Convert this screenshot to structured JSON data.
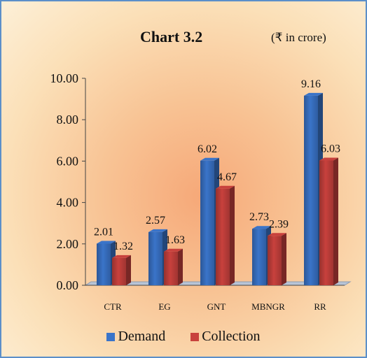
{
  "chart_data": {
    "type": "bar",
    "title": "Chart 3.2",
    "subtitle": "(₹ in crore)",
    "categories": [
      "CTR",
      "EG",
      "GNT",
      "MBNGR",
      "RR"
    ],
    "series": [
      {
        "name": "Demand",
        "values": [
          2.01,
          2.57,
          6.02,
          2.73,
          9.16
        ],
        "color": "#3a74c9"
      },
      {
        "name": "Collection",
        "values": [
          1.32,
          1.63,
          4.67,
          2.39,
          6.03
        ],
        "color": "#c8413d"
      }
    ],
    "yticks": [
      "0.00",
      "2.00",
      "4.00",
      "6.00",
      "8.00",
      "10.00"
    ],
    "ylim": [
      0,
      10
    ],
    "legend_position": "bottom",
    "grid": false
  }
}
